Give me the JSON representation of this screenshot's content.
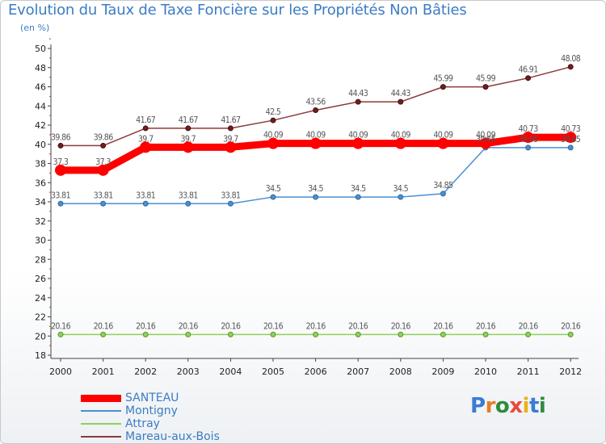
{
  "title": "Evolution du Taux de Taxe Foncière sur les Propriétés Non Bâties",
  "subtitle": "(en %)",
  "logo": "Proxiti",
  "chart_data": {
    "type": "line",
    "title": "Evolution du Taux de Taxe Foncière sur les Propriétés Non Bâties",
    "ylabel": "(en %)",
    "xlabel": "",
    "x": [
      "2000",
      "2001",
      "2002",
      "2003",
      "2004",
      "2005",
      "2006",
      "2007",
      "2008",
      "2009",
      "2010",
      "2011",
      "2012"
    ],
    "ylim": [
      18,
      50
    ],
    "yticks": [
      18,
      20,
      22,
      24,
      26,
      28,
      30,
      32,
      34,
      36,
      38,
      40,
      42,
      44,
      46,
      48,
      50
    ],
    "grid": false,
    "legend_position": "bottom-left",
    "series": [
      {
        "name": "SANTEAU",
        "color": "#ff0000",
        "values": [
          37.3,
          37.3,
          39.7,
          39.7,
          39.7,
          40.09,
          40.09,
          40.09,
          40.09,
          40.09,
          40.09,
          40.73,
          40.73
        ],
        "labels": [
          "37.3",
          "37.3",
          "39.7",
          "39.7",
          "39.7",
          "40.09",
          "40.09",
          "40.09",
          "40.09",
          "40.09",
          "40.09",
          "40.73",
          "40.73"
        ]
      },
      {
        "name": "Montigny",
        "color": "#4a8fcf",
        "values": [
          33.81,
          33.81,
          33.81,
          33.81,
          33.81,
          34.5,
          34.5,
          34.5,
          34.5,
          34.85,
          39.65,
          39.65,
          39.65
        ],
        "labels": [
          "33.81",
          "33.81",
          "33.81",
          "33.81",
          "33.81",
          "34.5",
          "34.5",
          "34.5",
          "34.5",
          "34.85",
          "39.65",
          "39.65",
          "39.65"
        ]
      },
      {
        "name": "Attray",
        "color": "#8fd05a",
        "values": [
          20.16,
          20.16,
          20.16,
          20.16,
          20.16,
          20.16,
          20.16,
          20.16,
          20.16,
          20.16,
          20.16,
          20.16,
          20.16
        ],
        "labels": [
          "20.16",
          "20.16",
          "20.16",
          "20.16",
          "20.16",
          "20.16",
          "20.16",
          "20.16",
          "20.16",
          "20.16",
          "20.16",
          "20.16",
          "20.16"
        ]
      },
      {
        "name": "Mareau-aux-Bois",
        "color": "#8b3a3a",
        "values": [
          39.86,
          39.86,
          41.67,
          41.67,
          41.67,
          42.5,
          43.56,
          44.43,
          44.43,
          45.99,
          45.99,
          46.91,
          48.08
        ],
        "labels": [
          "39.86",
          "39.86",
          "41.67",
          "41.67",
          "41.67",
          "42.5",
          "43.56",
          "44.43",
          "44.43",
          "45.99",
          "45.99",
          "46.91",
          "48.08"
        ]
      }
    ]
  }
}
